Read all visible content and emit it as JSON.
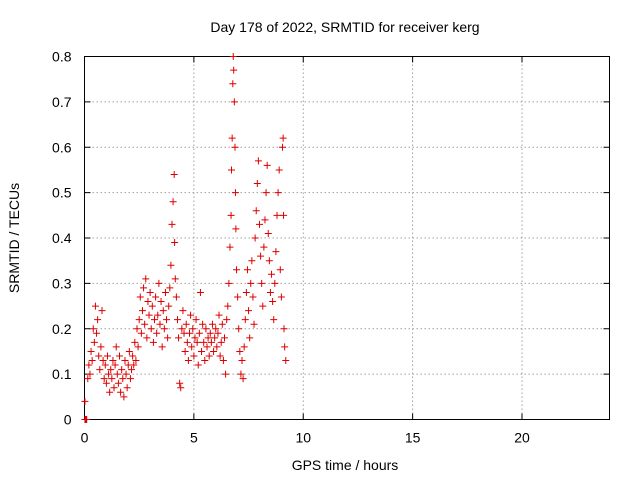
{
  "chart_data": {
    "type": "scatter",
    "title": "Day 178 of 2022, SRMTID for receiver kerg",
    "xlabel": "GPS time / hours",
    "ylabel": "SRMTID / TECUs",
    "xlim": [
      0,
      24
    ],
    "ylim": [
      0,
      0.8
    ],
    "x_ticks": [
      0,
      5,
      10,
      15,
      20
    ],
    "y_ticks": [
      0,
      0.1,
      0.2,
      0.3,
      0.4,
      0.5,
      0.6,
      0.7,
      0.8
    ],
    "x_tick_labels": [
      "0",
      "5",
      "10",
      "15",
      "20"
    ],
    "y_tick_labels": [
      "0",
      "0.1",
      "0.2",
      "0.3",
      "0.4",
      "0.5",
      "0.6",
      "0.7",
      "0.8"
    ],
    "grid": true,
    "marker": "+",
    "series": [
      {
        "name": "SRMTID",
        "color": "#dd0000",
        "points": [
          [
            0.02,
            0.0
          ],
          [
            0.05,
            0.0
          ],
          [
            0.08,
            0.0
          ],
          [
            0.1,
            0.0
          ],
          [
            0.02,
            0.04
          ],
          [
            0.15,
            0.09
          ],
          [
            0.2,
            0.12
          ],
          [
            0.25,
            0.1
          ],
          [
            0.3,
            0.15
          ],
          [
            0.35,
            0.13
          ],
          [
            0.4,
            0.2
          ],
          [
            0.45,
            0.17
          ],
          [
            0.5,
            0.25
          ],
          [
            0.55,
            0.19
          ],
          [
            0.6,
            0.22
          ],
          [
            0.65,
            0.14
          ],
          [
            0.7,
            0.11
          ],
          [
            0.75,
            0.16
          ],
          [
            0.8,
            0.24
          ],
          [
            0.85,
            0.13
          ],
          [
            0.9,
            0.09
          ],
          [
            0.95,
            0.12
          ],
          [
            1.0,
            0.08
          ],
          [
            1.05,
            0.14
          ],
          [
            1.1,
            0.1
          ],
          [
            1.15,
            0.06
          ],
          [
            1.2,
            0.11
          ],
          [
            1.25,
            0.09
          ],
          [
            1.3,
            0.13
          ],
          [
            1.35,
            0.07
          ],
          [
            1.4,
            0.12
          ],
          [
            1.45,
            0.16
          ],
          [
            1.5,
            0.1
          ],
          [
            1.55,
            0.08
          ],
          [
            1.6,
            0.14
          ],
          [
            1.65,
            0.06
          ],
          [
            1.7,
            0.11
          ],
          [
            1.75,
            0.09
          ],
          [
            1.8,
            0.05
          ],
          [
            1.85,
            0.13
          ],
          [
            1.9,
            0.1
          ],
          [
            1.95,
            0.07
          ],
          [
            2.0,
            0.12
          ],
          [
            2.05,
            0.15
          ],
          [
            2.1,
            0.09
          ],
          [
            2.15,
            0.11
          ],
          [
            2.2,
            0.14
          ],
          [
            2.25,
            0.12
          ],
          [
            2.3,
            0.17
          ],
          [
            2.35,
            0.13
          ],
          [
            2.4,
            0.2
          ],
          [
            2.45,
            0.16
          ],
          [
            2.5,
            0.22
          ],
          [
            2.55,
            0.27
          ],
          [
            2.6,
            0.19
          ],
          [
            2.65,
            0.24
          ],
          [
            2.7,
            0.29
          ],
          [
            2.75,
            0.21
          ],
          [
            2.8,
            0.31
          ],
          [
            2.85,
            0.18
          ],
          [
            2.9,
            0.26
          ],
          [
            2.95,
            0.23
          ],
          [
            3.0,
            0.28
          ],
          [
            3.05,
            0.2
          ],
          [
            3.1,
            0.25
          ],
          [
            3.15,
            0.17
          ],
          [
            3.2,
            0.22
          ],
          [
            3.25,
            0.27
          ],
          [
            3.3,
            0.19
          ],
          [
            3.35,
            0.23
          ],
          [
            3.4,
            0.3
          ],
          [
            3.45,
            0.21
          ],
          [
            3.5,
            0.26
          ],
          [
            3.55,
            0.16
          ],
          [
            3.6,
            0.24
          ],
          [
            3.65,
            0.2
          ],
          [
            3.7,
            0.28
          ],
          [
            3.75,
            0.22
          ],
          [
            3.8,
            0.18
          ],
          [
            3.85,
            0.25
          ],
          [
            3.9,
            0.29
          ],
          [
            3.95,
            0.34
          ],
          [
            4.0,
            0.43
          ],
          [
            4.05,
            0.48
          ],
          [
            4.1,
            0.54
          ],
          [
            4.12,
            0.39
          ],
          [
            4.15,
            0.31
          ],
          [
            4.2,
            0.27
          ],
          [
            4.25,
            0.22
          ],
          [
            4.3,
            0.18
          ],
          [
            4.35,
            0.08
          ],
          [
            4.4,
            0.07
          ],
          [
            4.45,
            0.2
          ],
          [
            4.5,
            0.24
          ],
          [
            4.55,
            0.19
          ],
          [
            4.6,
            0.15
          ],
          [
            4.65,
            0.21
          ],
          [
            4.7,
            0.17
          ],
          [
            4.75,
            0.13
          ],
          [
            4.8,
            0.19
          ],
          [
            4.85,
            0.23
          ],
          [
            4.9,
            0.16
          ],
          [
            4.95,
            0.2
          ],
          [
            5.0,
            0.14
          ],
          [
            5.05,
            0.18
          ],
          [
            5.1,
            0.22
          ],
          [
            5.15,
            0.17
          ],
          [
            5.2,
            0.12
          ],
          [
            5.25,
            0.19
          ],
          [
            5.3,
            0.28
          ],
          [
            5.35,
            0.15
          ],
          [
            5.4,
            0.21
          ],
          [
            5.45,
            0.17
          ],
          [
            5.5,
            0.13
          ],
          [
            5.55,
            0.2
          ],
          [
            5.6,
            0.16
          ],
          [
            5.65,
            0.18
          ],
          [
            5.7,
            0.14
          ],
          [
            5.75,
            0.19
          ],
          [
            5.8,
            0.17
          ],
          [
            5.85,
            0.21
          ],
          [
            5.9,
            0.15
          ],
          [
            5.95,
            0.18
          ],
          [
            6.0,
            0.2
          ],
          [
            6.05,
            0.16
          ],
          [
            6.1,
            0.19
          ],
          [
            6.15,
            0.23
          ],
          [
            6.2,
            0.14
          ],
          [
            6.25,
            0.17
          ],
          [
            6.3,
            0.21
          ],
          [
            6.35,
            0.13
          ],
          [
            6.4,
            0.18
          ],
          [
            6.45,
            0.1
          ],
          [
            6.5,
            0.22
          ],
          [
            6.55,
            0.25
          ],
          [
            6.6,
            0.3
          ],
          [
            6.65,
            0.38
          ],
          [
            6.7,
            0.45
          ],
          [
            6.72,
            0.55
          ],
          [
            6.75,
            0.62
          ],
          [
            6.78,
            0.74
          ],
          [
            6.8,
            0.8
          ],
          [
            6.82,
            0.77
          ],
          [
            6.85,
            0.7
          ],
          [
            6.88,
            0.6
          ],
          [
            6.9,
            0.5
          ],
          [
            6.92,
            0.42
          ],
          [
            6.95,
            0.33
          ],
          [
            7.0,
            0.27
          ],
          [
            7.05,
            0.2
          ],
          [
            7.1,
            0.15
          ],
          [
            7.15,
            0.1
          ],
          [
            7.2,
            0.13
          ],
          [
            7.25,
            0.09
          ],
          [
            7.3,
            0.16
          ],
          [
            7.35,
            0.22
          ],
          [
            7.4,
            0.28
          ],
          [
            7.45,
            0.33
          ],
          [
            7.5,
            0.24
          ],
          [
            7.55,
            0.18
          ],
          [
            7.6,
            0.3
          ],
          [
            7.65,
            0.35
          ],
          [
            7.7,
            0.27
          ],
          [
            7.75,
            0.21
          ],
          [
            7.8,
            0.4
          ],
          [
            7.85,
            0.46
          ],
          [
            7.9,
            0.52
          ],
          [
            7.95,
            0.57
          ],
          [
            8.0,
            0.43
          ],
          [
            8.05,
            0.36
          ],
          [
            8.1,
            0.3
          ],
          [
            8.15,
            0.25
          ],
          [
            8.2,
            0.38
          ],
          [
            8.25,
            0.44
          ],
          [
            8.3,
            0.5
          ],
          [
            8.35,
            0.56
          ],
          [
            8.4,
            0.41
          ],
          [
            8.45,
            0.35
          ],
          [
            8.5,
            0.28
          ],
          [
            8.55,
            0.32
          ],
          [
            8.6,
            0.26
          ],
          [
            8.65,
            0.22
          ],
          [
            8.7,
            0.3
          ],
          [
            8.75,
            0.37
          ],
          [
            8.8,
            0.45
          ],
          [
            8.85,
            0.5
          ],
          [
            8.9,
            0.55
          ],
          [
            8.95,
            0.33
          ],
          [
            9.0,
            0.27
          ],
          [
            9.05,
            0.6
          ],
          [
            9.08,
            0.62
          ],
          [
            9.1,
            0.45
          ],
          [
            9.12,
            0.2
          ],
          [
            9.15,
            0.16
          ],
          [
            9.2,
            0.13
          ]
        ]
      }
    ]
  }
}
